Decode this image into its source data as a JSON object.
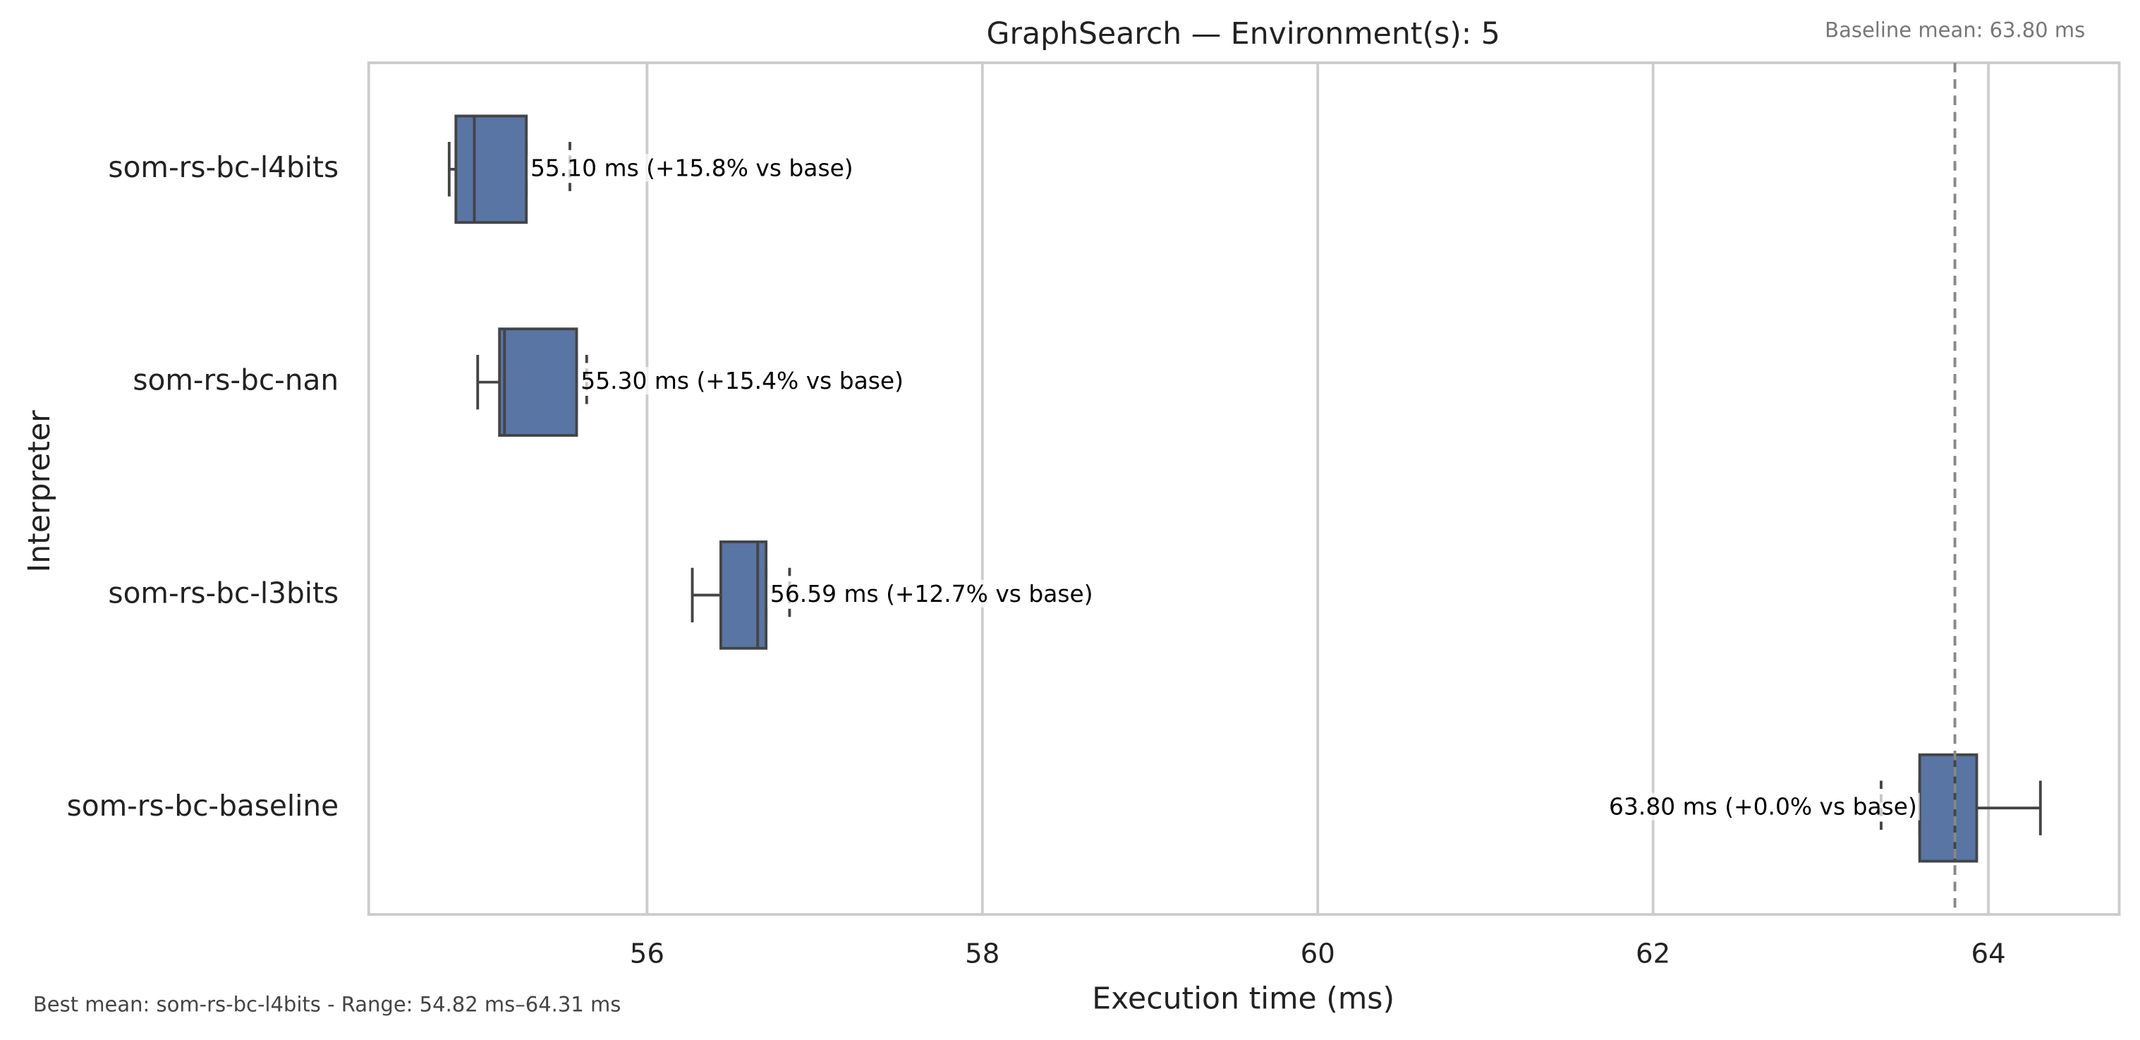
{
  "chart_data": {
    "type": "box",
    "title": "GraphSearch — Environment(s): 5",
    "xlabel": "Execution time (ms)",
    "ylabel": "Interpreter",
    "categories": [
      "som-rs-bc-l4bits",
      "som-rs-bc-nan",
      "som-rs-bc-l3bits",
      "som-rs-bc-baseline"
    ],
    "boxes": [
      {
        "whislo": 54.82,
        "q1": 54.86,
        "med": 54.97,
        "q3": 55.28,
        "whishi": 55.28
      },
      {
        "whislo": 54.99,
        "q1": 55.12,
        "med": 55.15,
        "q3": 55.58,
        "whishi": 55.58
      },
      {
        "whislo": 56.27,
        "q1": 56.44,
        "med": 56.66,
        "q3": 56.71,
        "whishi": 56.71
      },
      {
        "whislo": 63.59,
        "q1": 63.59,
        "med": 63.8,
        "q3": 63.93,
        "whishi": 64.31
      }
    ],
    "markers": [
      55.54,
      55.64,
      56.85,
      63.36
    ],
    "values": [
      55.1,
      55.3,
      56.59,
      63.8
    ],
    "value_labels": [
      "55.10 ms  (+15.8% vs base)",
      "55.30 ms  (+15.4% vs base)",
      "56.59 ms  (+12.7% vs base)",
      "63.80 ms  (+0.0% vs base)"
    ],
    "color": "#5875a4",
    "baseline": 63.8,
    "baseline_label": "Baseline mean: 63.80 ms",
    "note": "Best mean: som-rs-bc-l4bits - Range: 54.82 ms–64.31 ms",
    "xlim": [
      54.34,
      64.78
    ],
    "xticks": [
      56,
      58,
      60,
      62,
      64
    ],
    "grid": true
  }
}
